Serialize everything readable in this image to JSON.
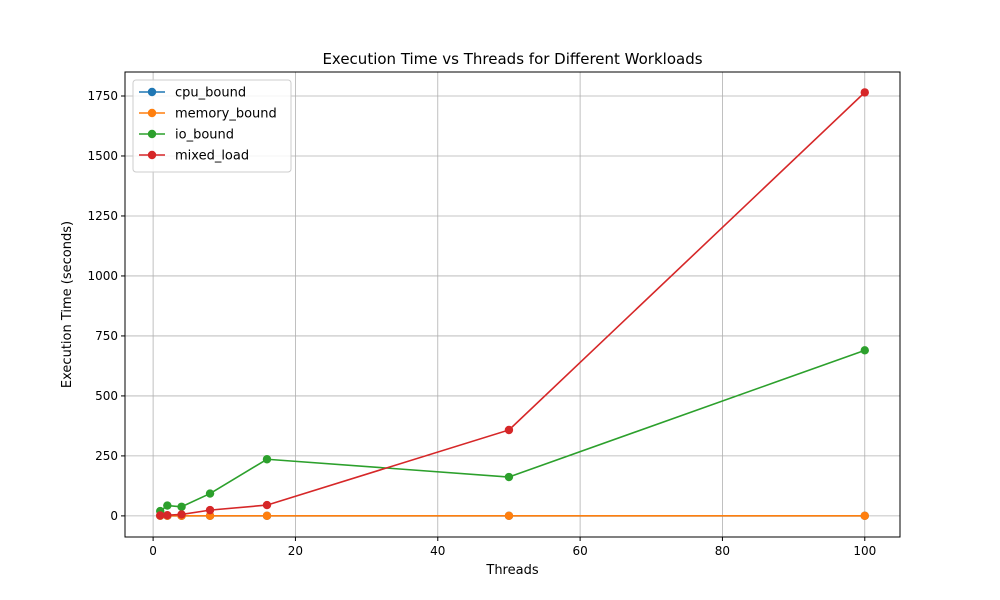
{
  "chart_data": {
    "type": "line",
    "title": "Execution Time vs Threads for Different Workloads",
    "xlabel": "Threads",
    "ylabel": "Execution Time (seconds)",
    "xlim": [
      -3.95,
      104.95
    ],
    "ylim": [
      -88,
      1850
    ],
    "xticks": [
      0,
      20,
      40,
      60,
      80,
      100
    ],
    "yticks": [
      0,
      250,
      500,
      750,
      1000,
      1250,
      1500,
      1750
    ],
    "grid": true,
    "legend": "top-left",
    "x": [
      1,
      2,
      4,
      8,
      16,
      50,
      100
    ],
    "series": [
      {
        "name": "cpu_bound",
        "color": "#1f77b4",
        "values": [
          0.3,
          0.3,
          0.3,
          0.3,
          0.3,
          0.3,
          0.3
        ]
      },
      {
        "name": "memory_bound",
        "color": "#ff7f0e",
        "values": [
          0.5,
          0.5,
          0.5,
          0.5,
          0.5,
          0.5,
          0.5
        ]
      },
      {
        "name": "io_bound",
        "color": "#2ca02c",
        "values": [
          20,
          43,
          38,
          93,
          236,
          162,
          690
        ]
      },
      {
        "name": "mixed_load",
        "color": "#d62728",
        "values": [
          2,
          3,
          6,
          24,
          45,
          358,
          1765
        ]
      }
    ]
  }
}
